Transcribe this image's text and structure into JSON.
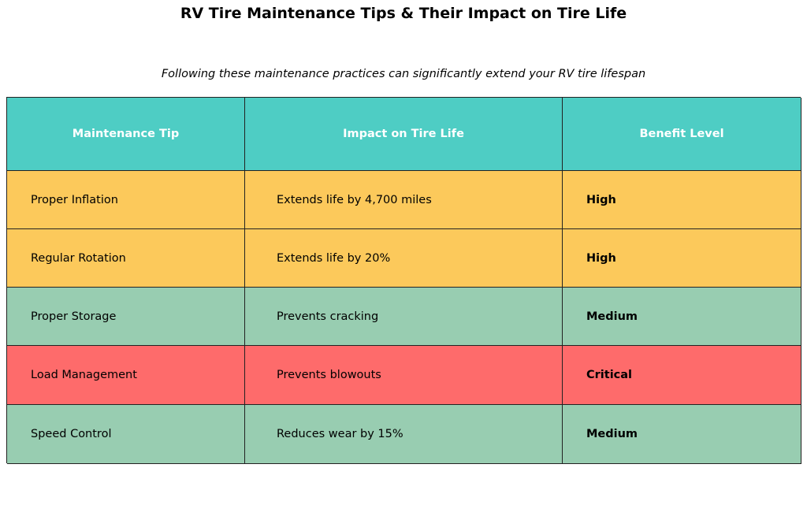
{
  "chart_data": {
    "type": "table",
    "title": "RV Tire Maintenance Tips & Their Impact on Tire Life",
    "subtitle": "Following these maintenance practices can significantly extend your RV tire lifespan",
    "columns": [
      "Maintenance Tip",
      "Impact on Tire Life",
      "Benefit Level"
    ],
    "header_color": "#4ecdc4",
    "rows": [
      {
        "cells": [
          "Proper Inflation",
          "Extends life by 4,700 miles",
          "High"
        ],
        "color": "#fcc95b"
      },
      {
        "cells": [
          "Regular Rotation",
          "Extends life by 20%",
          "High"
        ],
        "color": "#fcc95b"
      },
      {
        "cells": [
          "Proper Storage",
          "Prevents cracking",
          "Medium"
        ],
        "color": "#98cdb1"
      },
      {
        "cells": [
          "Load Management",
          "Prevents blowouts",
          "Critical"
        ],
        "color": "#fe6b6b"
      },
      {
        "cells": [
          "Speed Control",
          "Reduces wear by 15%",
          "Medium"
        ],
        "color": "#98cdb1"
      }
    ]
  }
}
